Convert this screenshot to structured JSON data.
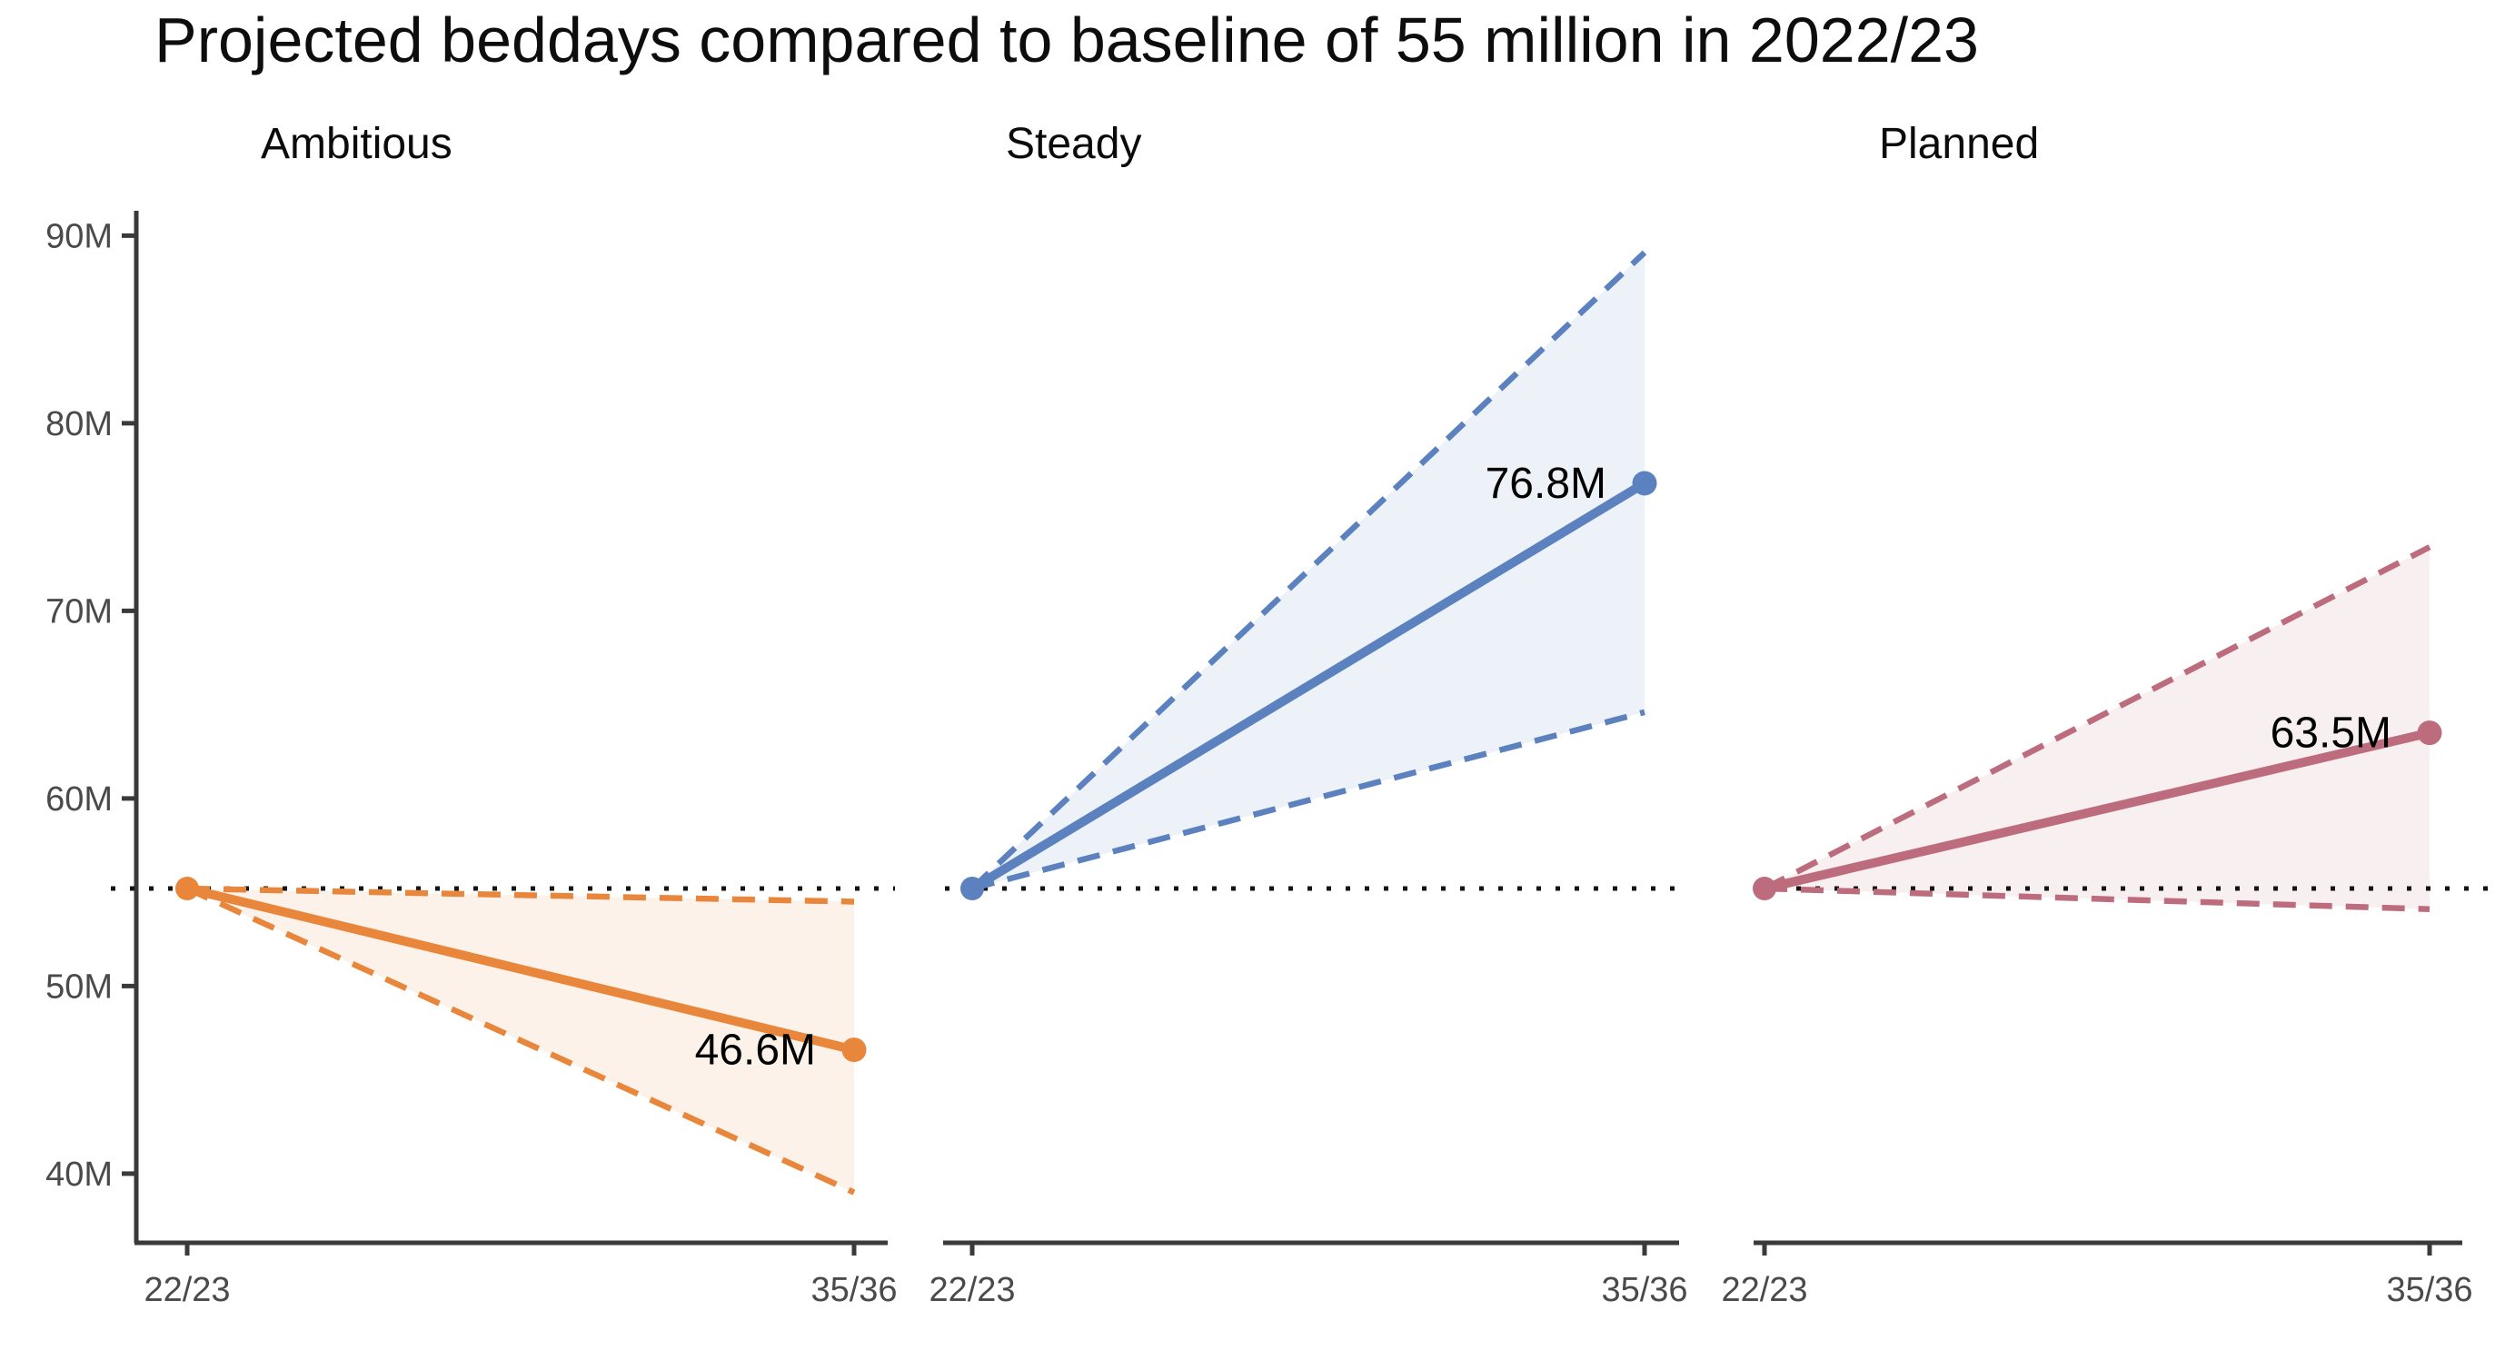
{
  "chart_data": {
    "type": "line",
    "title": "Projected beddays compared to baseline of 55 million in 2022/23",
    "y_unit": "M beddays",
    "ylim": [
      38,
      92
    ],
    "y_ticks": [
      40,
      50,
      60,
      70,
      80,
      90
    ],
    "y_tick_labels": [
      "40M",
      "50M",
      "60M",
      "70M",
      "80M",
      "90M"
    ],
    "x_tick_labels": [
      "22/23",
      "35/36"
    ],
    "baseline_value": 55.2,
    "baseline_color": "#141414",
    "axis_color": "#3a3a3a",
    "tick_label_color": "#4a4a4a",
    "legend_position": "none",
    "grid": false,
    "panels": [
      {
        "name": "Ambitious",
        "color": "#E8873C",
        "x": [
          "22/23",
          "35/36"
        ],
        "central": [
          55.2,
          46.6
        ],
        "upper": [
          55.2,
          54.5
        ],
        "lower": [
          55.2,
          39.0
        ],
        "end_label": "46.6M"
      },
      {
        "name": "Steady",
        "color": "#5B81BF",
        "x": [
          "22/23",
          "35/36"
        ],
        "central": [
          55.2,
          76.8
        ],
        "upper": [
          55.2,
          89.1
        ],
        "lower": [
          55.2,
          64.6
        ],
        "end_label": "76.8M"
      },
      {
        "name": "Planned",
        "color": "#BC6C7C",
        "x": [
          "22/23",
          "35/36"
        ],
        "central": [
          55.2,
          63.5
        ],
        "upper": [
          55.2,
          73.4
        ],
        "lower": [
          55.2,
          54.1
        ],
        "end_label": "63.5M"
      }
    ]
  }
}
